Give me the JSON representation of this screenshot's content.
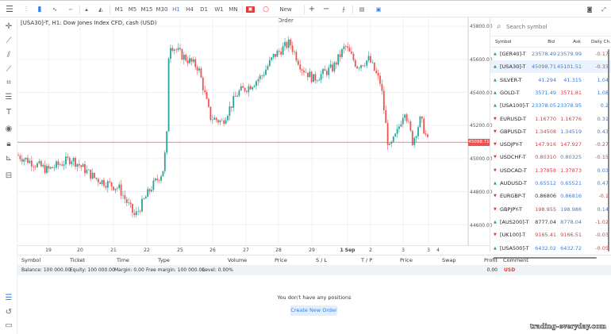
{
  "toolbar": {
    "timeframes": [
      "M1",
      "M5",
      "M15",
      "M30",
      "H1",
      "H4",
      "D1",
      "W1",
      "MN"
    ],
    "active_timeframe": "H1",
    "new_order_label": "New Order",
    "zoom_in": "+",
    "zoom_out": "−"
  },
  "chart": {
    "title": "[USA30]-T, H1: Dow Jones Index CFD, cash (USD)",
    "price_ticks": [
      "45800.00",
      "45600.00",
      "45400.00",
      "45200.00",
      "45000.00",
      "44800.00",
      "44600.00"
    ],
    "date_ticks": [
      "19",
      "20",
      "21",
      "22",
      "25",
      "26",
      "27",
      "28",
      "29",
      "1 Sep",
      "2",
      "3",
      "3",
      "4"
    ],
    "current_price": "45098.71",
    "colors": {
      "up": "#26a69a",
      "down": "#ef5350",
      "price_line": "#ef5350"
    }
  },
  "watchlist": {
    "search_placeholder": "Search symbol",
    "columns": [
      "Symbol",
      "Bid",
      "Ask",
      "Daily Ch."
    ],
    "rows": [
      {
        "symbol": "[GER40]-T",
        "dir": "up",
        "bid": "23578.49",
        "ask": "23579.99",
        "change": "-0.17",
        "bc": "blue",
        "ac": "blue",
        "cc": "red"
      },
      {
        "symbol": "[USA30]-T",
        "dir": "up",
        "bid": "45098.71",
        "ask": "45101.51",
        "change": "-0.33",
        "bc": "blue",
        "ac": "blue",
        "cc": "red"
      },
      {
        "symbol": "SILVER-T",
        "dir": "up",
        "bid": "41.294",
        "ask": "41.315",
        "change": "1.04",
        "bc": "blue",
        "ac": "blue",
        "cc": "blue"
      },
      {
        "symbol": "GOLD-T",
        "dir": "up",
        "bid": "3571.49",
        "ask": "3571.81",
        "change": "1.08",
        "bc": "blue",
        "ac": "red",
        "cc": "blue"
      },
      {
        "symbol": "[USA100]-T",
        "dir": "up",
        "bid": "23378.05",
        "ask": "23378.95",
        "change": "0.2",
        "bc": "blue",
        "ac": "blue",
        "cc": "blue"
      },
      {
        "symbol": "EURUSD-T",
        "dir": "down",
        "bid": "1.16770",
        "ask": "1.16776",
        "change": "0.31",
        "bc": "red",
        "ac": "red",
        "cc": "blue"
      },
      {
        "symbol": "GBPUSD-T",
        "dir": "down",
        "bid": "1.34508",
        "ask": "1.34519",
        "change": "0.43",
        "bc": "red",
        "ac": "blue",
        "cc": "blue"
      },
      {
        "symbol": "USDJPY-T",
        "dir": "down",
        "bid": "147.916",
        "ask": "147.927",
        "change": "-0.27",
        "bc": "red",
        "ac": "red",
        "cc": "red"
      },
      {
        "symbol": "USDCHF-T",
        "dir": "down",
        "bid": "0.80310",
        "ask": "0.80325",
        "change": "-0.15",
        "bc": "red",
        "ac": "blue",
        "cc": "red"
      },
      {
        "symbol": "USDCAD-T",
        "dir": "down",
        "bid": "1.37858",
        "ask": "1.37873",
        "change": "0.03",
        "bc": "red",
        "ac": "red",
        "cc": "blue"
      },
      {
        "symbol": "AUDUSD-T",
        "dir": "up",
        "bid": "0.65512",
        "ask": "0.65521",
        "change": "0.47",
        "bc": "blue",
        "ac": "blue",
        "cc": "blue"
      },
      {
        "symbol": "EURGBP-T",
        "dir": "down",
        "bid": "0.86806",
        "ask": "0.86816",
        "change": "-0.1",
        "bc": "black",
        "ac": "blue",
        "cc": "red"
      },
      {
        "symbol": "GBPJPY-T",
        "dir": "down",
        "bid": "198.955",
        "ask": "198.986",
        "change": "0.14",
        "bc": "red",
        "ac": "blue",
        "cc": "blue"
      },
      {
        "symbol": "[AUS200]-T",
        "dir": "up",
        "bid": "8777.04",
        "ask": "8778.04",
        "change": "-1.02",
        "bc": "black",
        "ac": "blue",
        "cc": "red"
      },
      {
        "symbol": "[UK100]-T",
        "dir": "down",
        "bid": "9165.41",
        "ask": "9166.51",
        "change": "-0.03",
        "bc": "red",
        "ac": "red",
        "cc": "red"
      },
      {
        "symbol": "[USA500]-T",
        "dir": "up",
        "bid": "6432.02",
        "ask": "6432.72",
        "change": "-0.05",
        "bc": "blue",
        "ac": "blue",
        "cc": "red"
      }
    ],
    "selected": "[USA30]-T"
  },
  "positions": {
    "columns": [
      "Symbol",
      "Ticket",
      "Time",
      "Type",
      "Volume",
      "Price",
      "S / L",
      "T / P",
      "Price",
      "Swap",
      "Profit",
      "Comment"
    ],
    "balance": "Balance: 100 000.00",
    "equity": "Equity: 100 000.00",
    "margin": "Margin: 0.00",
    "free_margin": "Free margin: 100 000.00",
    "level": "Level: 0.00%",
    "profit": "0.00",
    "currency": "USD",
    "empty_message": "You don't have any positions",
    "create_label": "Create New Order"
  },
  "watermark": "trading-everyday.com"
}
